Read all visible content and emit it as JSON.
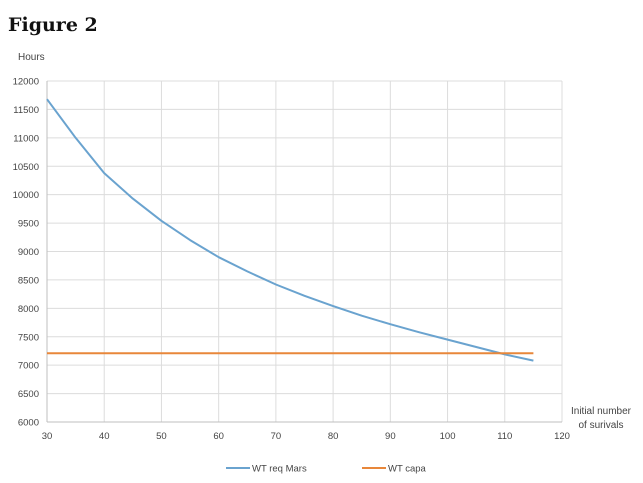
{
  "figure_title": "Figure 2",
  "chart_data": {
    "type": "line",
    "ylabel": "Hours",
    "xlabel_lines": [
      "Initial number",
      "of surivals"
    ],
    "xlim": [
      30,
      120
    ],
    "ylim": [
      6000,
      12000
    ],
    "x_ticks": [
      "30",
      "40",
      "50",
      "60",
      "70",
      "80",
      "90",
      "100",
      "110",
      "120"
    ],
    "y_ticks": [
      "12000",
      "11500",
      "11000",
      "10500",
      "10000",
      "9500",
      "9000",
      "8500",
      "8000",
      "7500",
      "7000",
      "6500",
      "6000"
    ],
    "grid": true,
    "legend_position": "bottom",
    "series": [
      {
        "name": "WT req Mars",
        "color": "#6aa3cf",
        "x": [
          30,
          35,
          40,
          45,
          50,
          55,
          60,
          65,
          70,
          75,
          80,
          85,
          90,
          95,
          100,
          105,
          110,
          115
        ],
        "y": [
          11680,
          11000,
          10380,
          9930,
          9540,
          9200,
          8900,
          8650,
          8420,
          8220,
          8040,
          7870,
          7720,
          7580,
          7450,
          7320,
          7190,
          7080
        ]
      },
      {
        "name": "WT capa",
        "color": "#e8873a",
        "x": [
          30,
          115
        ],
        "y": [
          7210,
          7210
        ]
      }
    ]
  }
}
